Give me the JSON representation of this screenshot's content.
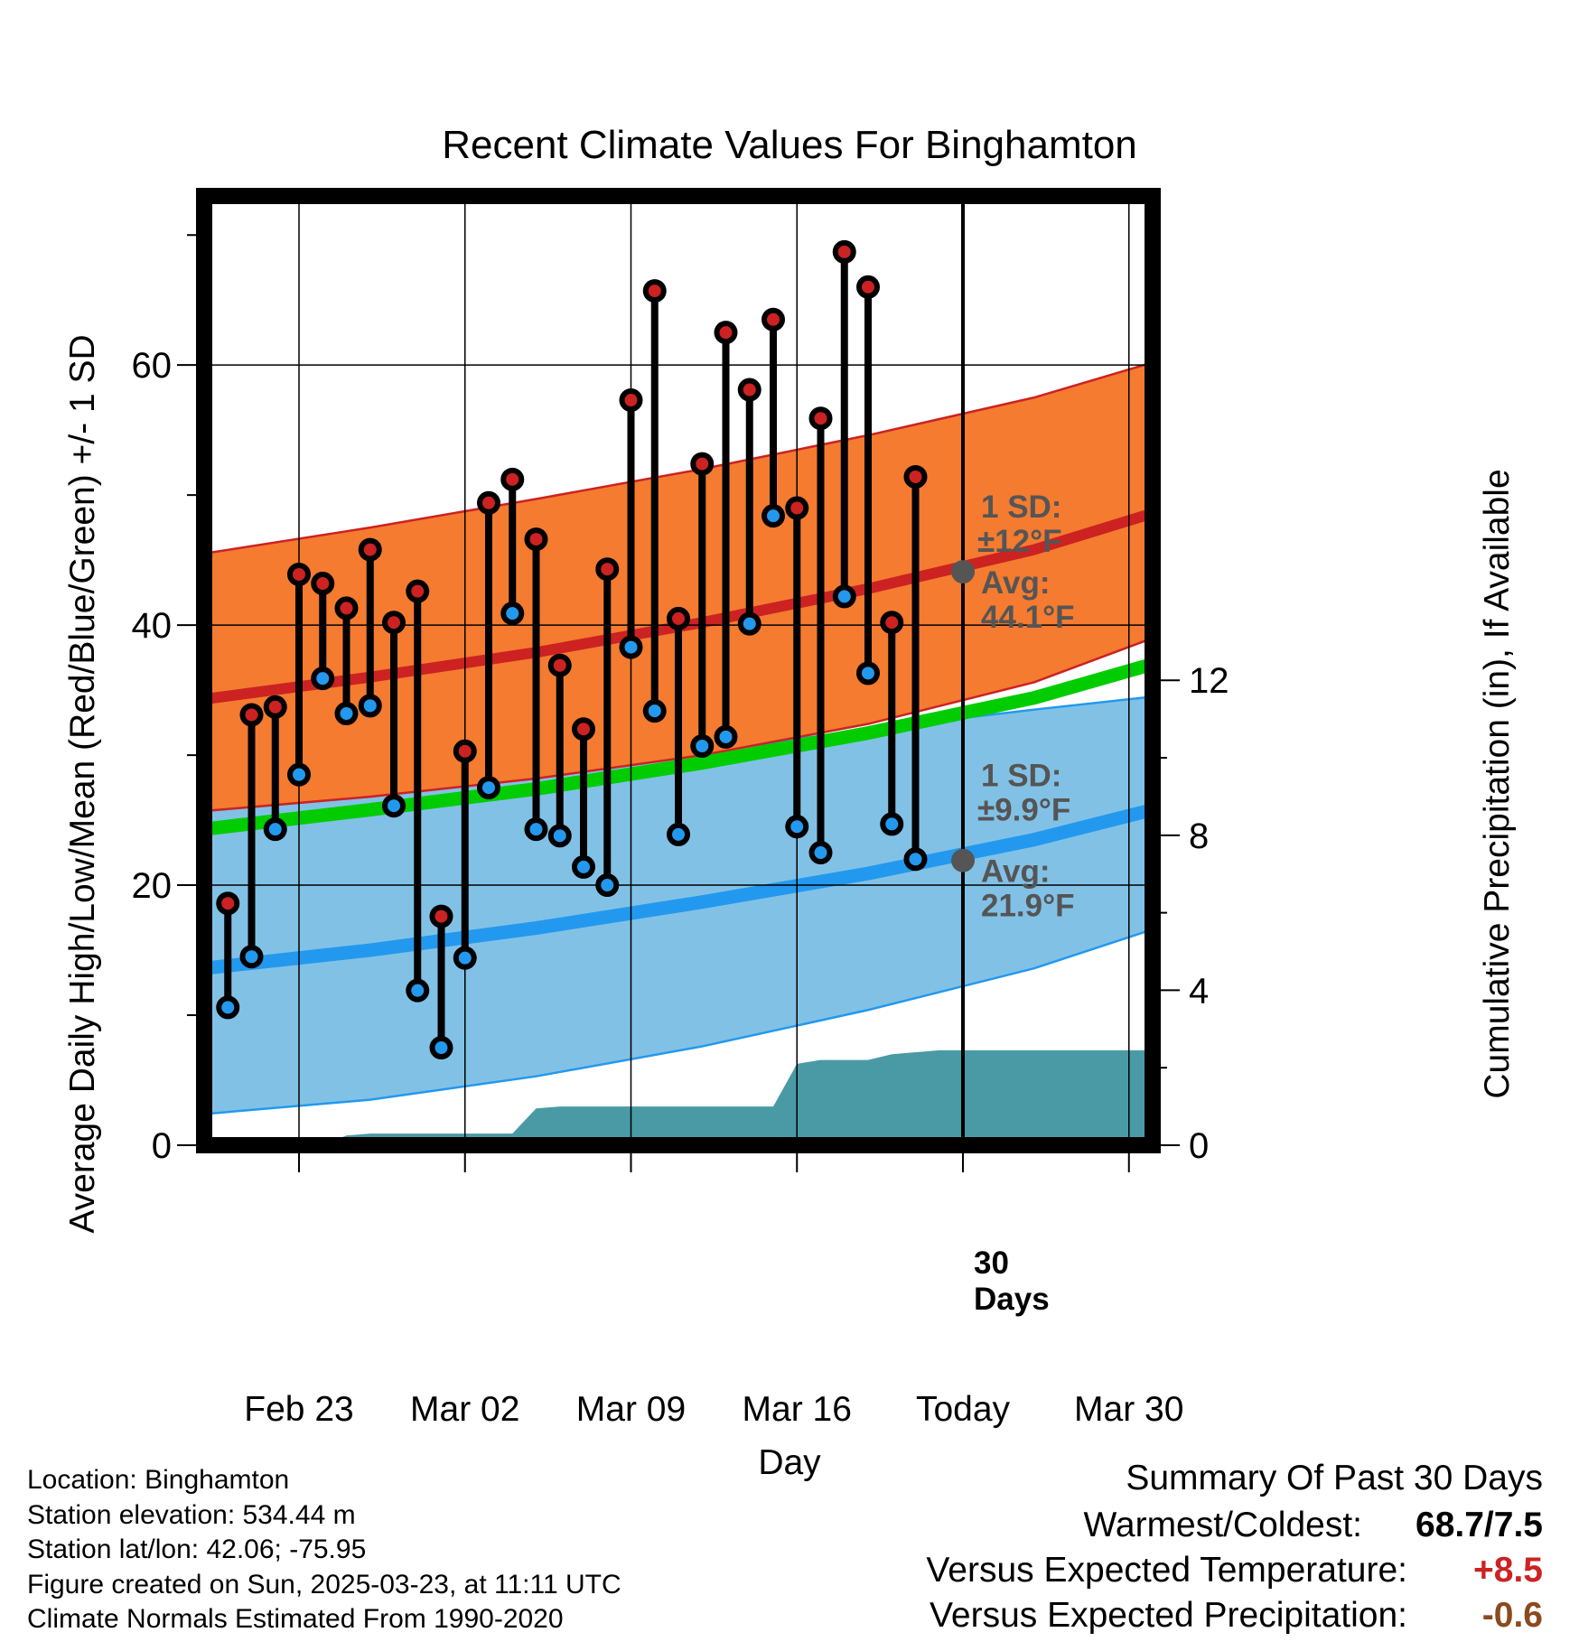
{
  "chart_data": {
    "type": "line",
    "title": "Recent Climate Values For Binghamton",
    "xlabel": "Day",
    "ylabel": "Average Daily High/Low/Mean (Red/Blue/Green) +/- 1 SD",
    "ylabel_right": "Cumulative Precipitation (in), If Available",
    "ylim": [
      0,
      73
    ],
    "ylim_right": [
      0,
      24.5
    ],
    "yticks": [
      "0",
      "20",
      "40",
      "60"
    ],
    "yticks_right": [
      "0",
      "4",
      "8",
      "12"
    ],
    "xticks": [
      "Feb 23",
      "Mar 02",
      "Mar 09",
      "Mar 16",
      "Today",
      "Mar 30"
    ],
    "xlim": [
      "2025-02-19",
      "2025-03-31"
    ],
    "x_tick_dates": [
      "2025-02-23",
      "2025-03-02",
      "2025-03-09",
      "2025-03-16",
      "2025-03-23",
      "2025-03-30"
    ],
    "today": "2025-03-23",
    "days_label": "30\nDays",
    "normals": {
      "x": [
        "2025-02-19",
        "2025-02-26",
        "2025-03-05",
        "2025-03-12",
        "2025-03-19",
        "2025-03-26",
        "2025-03-31"
      ],
      "avg_high": [
        34.3,
        36.0,
        37.9,
        40.2,
        42.8,
        45.8,
        48.6
      ],
      "high_sd_upper": [
        45.5,
        47.5,
        49.7,
        52.0,
        54.6,
        57.5,
        60.2
      ],
      "high_sd_lower": [
        25.7,
        26.8,
        28.2,
        30.0,
        32.4,
        35.6,
        39.0
      ],
      "avg_mean": [
        24.3,
        25.8,
        27.4,
        29.4,
        31.7,
        34.4,
        37.0
      ],
      "avg_low": [
        13.6,
        15.0,
        16.7,
        18.7,
        20.9,
        23.5,
        25.8
      ],
      "low_sd_upper": [
        25.7,
        26.8,
        28.3,
        30.2,
        32.0,
        33.5,
        34.5
      ],
      "low_sd_lower": [
        2.4,
        3.5,
        5.3,
        7.6,
        10.4,
        13.6,
        16.6
      ]
    },
    "series": [
      {
        "name": "High",
        "color": "#cc2222",
        "x": [
          "2025-02-20",
          "2025-02-21",
          "2025-02-22",
          "2025-02-23",
          "2025-02-24",
          "2025-02-25",
          "2025-02-26",
          "2025-02-27",
          "2025-02-28",
          "2025-03-01",
          "2025-03-02",
          "2025-03-03",
          "2025-03-04",
          "2025-03-05",
          "2025-03-06",
          "2025-03-07",
          "2025-03-08",
          "2025-03-09",
          "2025-03-10",
          "2025-03-11",
          "2025-03-12",
          "2025-03-13",
          "2025-03-14",
          "2025-03-15",
          "2025-03-16",
          "2025-03-17",
          "2025-03-18",
          "2025-03-19",
          "2025-03-20",
          "2025-03-21",
          "2025-03-22"
        ],
        "values": [
          18.6,
          33.1,
          33.7,
          43.9,
          43.2,
          41.3,
          45.8,
          40.2,
          42.6,
          17.6,
          30.3,
          49.4,
          51.2,
          46.6,
          36.9,
          32.0,
          44.3,
          57.3,
          65.7,
          40.5,
          52.4,
          62.5,
          58.1,
          63.5,
          49.0,
          55.9,
          68.7,
          66.0,
          40.2,
          51.4,
          null
        ]
      },
      {
        "name": "Low",
        "color": "#2299ee",
        "x": [
          "2025-02-20",
          "2025-02-21",
          "2025-02-22",
          "2025-02-23",
          "2025-02-24",
          "2025-02-25",
          "2025-02-26",
          "2025-02-27",
          "2025-02-28",
          "2025-03-01",
          "2025-03-02",
          "2025-03-03",
          "2025-03-04",
          "2025-03-05",
          "2025-03-06",
          "2025-03-07",
          "2025-03-08",
          "2025-03-09",
          "2025-03-10",
          "2025-03-11",
          "2025-03-12",
          "2025-03-13",
          "2025-03-14",
          "2025-03-15",
          "2025-03-16",
          "2025-03-17",
          "2025-03-18",
          "2025-03-19",
          "2025-03-20",
          "2025-03-21",
          "2025-03-22"
        ],
        "values": [
          10.6,
          14.5,
          24.3,
          28.5,
          35.9,
          33.2,
          33.8,
          26.1,
          11.9,
          7.5,
          14.4,
          27.5,
          40.9,
          24.3,
          23.8,
          21.4,
          20.0,
          38.3,
          33.4,
          23.9,
          30.7,
          31.4,
          40.1,
          48.4,
          24.5,
          22.5,
          42.2,
          36.3,
          24.7,
          22.0,
          null
        ]
      }
    ],
    "precip": {
      "x": [
        "2025-02-19",
        "2025-02-24",
        "2025-02-25",
        "2025-02-26",
        "2025-03-04",
        "2025-03-05",
        "2025-03-06",
        "2025-03-15",
        "2025-03-16",
        "2025-03-17",
        "2025-03-18",
        "2025-03-19",
        "2025-03-20",
        "2025-03-22",
        "2025-03-31"
      ],
      "values": [
        0.0,
        0.0,
        0.25,
        0.3,
        0.3,
        0.95,
        1.0,
        1.0,
        2.1,
        2.2,
        2.2,
        2.2,
        2.35,
        2.45,
        2.45
      ],
      "color": "#4a9aa5"
    },
    "annotations": {
      "high": {
        "sd": "1 SD:",
        "sd_val": "±12°F",
        "avg": "Avg:",
        "avg_val": "44.1°F",
        "y": 44.1
      },
      "low": {
        "sd": "1 SD:",
        "sd_val": "±9.9°F",
        "avg": "Avg:",
        "avg_val": "21.9°F",
        "y": 21.9
      }
    },
    "colors": {
      "high_band": "#f47b30",
      "high_line": "#cc2222",
      "low_band": "#82c1e6",
      "low_line": "#2299ee",
      "mean_line": "#00cc00",
      "annotation": "#555555"
    },
    "grid": true
  },
  "footer": {
    "location": "Location: Binghamton",
    "elevation": "Station elevation: 534.44 m",
    "latlon": "Station lat/lon: 42.06; -75.95",
    "created": "Figure created on Sun, 2025-03-23, at 11:11 UTC",
    "normals": "Climate Normals Estimated From 1990-2020"
  },
  "summary": {
    "title": "Summary Of Past 30 Days",
    "warmest_label": "Warmest/Coldest:",
    "warmest_value": "68.7/7.5",
    "temp_label": "Versus Expected Temperature:",
    "temp_value": "+8.5",
    "temp_color": "#cc2222",
    "precip_label": "Versus Expected Precipitation:",
    "precip_value": "-0.6",
    "precip_color": "#8b4a1e"
  }
}
